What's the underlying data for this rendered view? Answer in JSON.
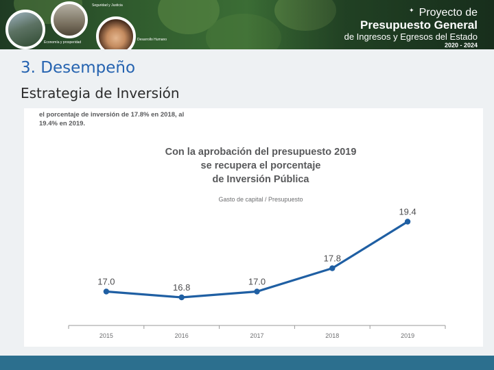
{
  "banner": {
    "line1": "Proyecto de",
    "line2": "Presupuesto General",
    "line3": "de Ingresos y Egresos del Estado",
    "line4": "2020 - 2024",
    "captions": [
      "Economía y prosperidad",
      "Seguridad y Justicia",
      "Desarrollo Humano"
    ]
  },
  "page": {
    "heading": "3. Desempeño",
    "subheading": "Estrategia de Inversión"
  },
  "card": {
    "intro": "el porcentaje de inversión de 17.8% en 2018, al 19.4% en 2019."
  },
  "chart_data": {
    "type": "line",
    "title_lines": [
      "Con la aprobación del presupuesto 2019",
      "se recupera el porcentaje",
      "de Inversión Pública"
    ],
    "subtitle": "Gasto de capital / Presupuesto",
    "categories": [
      "2015",
      "2016",
      "2017",
      "2018",
      "2019"
    ],
    "values": [
      17.0,
      16.8,
      17.0,
      17.8,
      19.4
    ],
    "value_labels": [
      "17.0",
      "16.8",
      "17.0",
      "17.8",
      "19.4"
    ],
    "xlabel": "",
    "ylabel": "",
    "ylim": [
      16.0,
      20.0
    ],
    "grid": false,
    "series_color": "#1f5fa3"
  },
  "colors": {
    "accent": "#2563b0",
    "footer": "#2c6f8e"
  }
}
